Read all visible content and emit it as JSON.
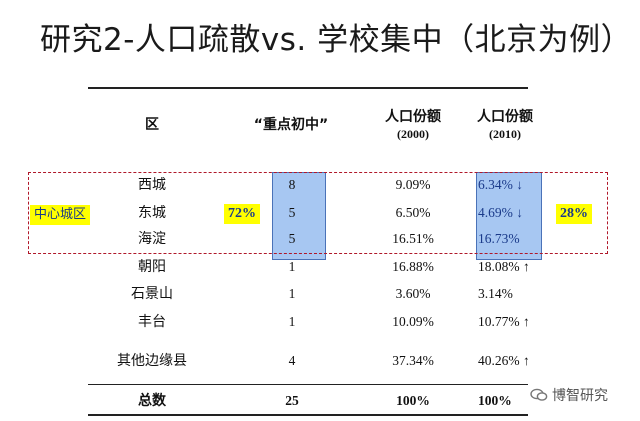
{
  "title": "研究2-人口疏散vs. 学校集中（北京为例）",
  "headers": {
    "district": "区",
    "schools": "“重点初中”",
    "pop2000_line1": "人口份额",
    "pop2000_line2": "(2000)",
    "pop2010_line1": "人口份额",
    "pop2010_line2": "(2010)"
  },
  "rows": [
    {
      "district": "西城",
      "schools": "8",
      "pop2000": "9.09%",
      "pop2010": "6.34% ↓"
    },
    {
      "district": "东城",
      "schools": "5",
      "pop2000": "6.50%",
      "pop2010": "4.69% ↓"
    },
    {
      "district": "海淀",
      "schools": "5",
      "pop2000": "16.51%",
      "pop2010": "16.73%"
    },
    {
      "district": "朝阳",
      "schools": "1",
      "pop2000": "16.88%",
      "pop2010": "18.08% ↑"
    },
    {
      "district": "石景山",
      "schools": "1",
      "pop2000": "3.60%",
      "pop2010": "3.14%"
    },
    {
      "district": "丰台",
      "schools": "1",
      "pop2000": "10.09%",
      "pop2010": "10.77% ↑"
    },
    {
      "district": "其他边缘县",
      "schools": "4",
      "pop2000": "37.34%",
      "pop2010": "40.26% ↑"
    }
  ],
  "total": {
    "district": "总数",
    "schools": "25",
    "pop2000": "100%",
    "pop2010": "100%"
  },
  "annotations": {
    "core_label": "中心城区",
    "school_share": "72%",
    "pop_share": "28%"
  },
  "watermark": "博智研究",
  "colors": {
    "highlight_blue": "#a7c7f2",
    "dash_red": "#b0182a",
    "badge_yellow": "#ffff00"
  }
}
